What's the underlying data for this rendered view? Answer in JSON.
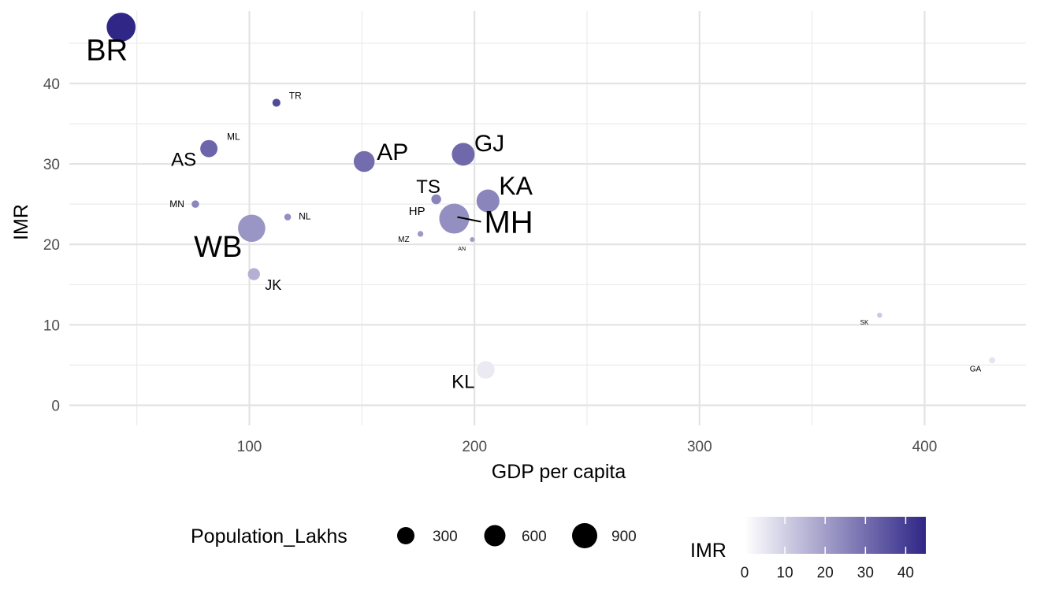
{
  "chart_data": {
    "type": "scatter",
    "title": "",
    "xlabel": "GDP per capita",
    "ylabel": "IMR",
    "xlim": [
      20,
      445
    ],
    "ylim": [
      -2.5,
      49
    ],
    "x_ticks": [
      100,
      200,
      300,
      400
    ],
    "y_ticks": [
      0,
      10,
      20,
      30,
      40
    ],
    "grid": true,
    "size_legend": {
      "title": "Population_Lakhs",
      "values": [
        300,
        600,
        900
      ],
      "labels": [
        "300",
        "600",
        "900"
      ]
    },
    "color_legend": {
      "title": "IMR",
      "range": [
        0,
        45
      ],
      "ticks": [
        0,
        10,
        20,
        30,
        40
      ],
      "labels": [
        "0",
        "10",
        "20",
        "30",
        "40"
      ],
      "low_color": "#ffffff",
      "high_color": "#2f2686"
    },
    "legend_position": "bottom",
    "points": [
      {
        "label": "BR",
        "x": 43,
        "y": 47,
        "population": 1040
      },
      {
        "label": "TR",
        "x": 112,
        "y": 37.6,
        "population": 37
      },
      {
        "label": "ML",
        "x": 83,
        "y": 32,
        "population": 30
      },
      {
        "label": "AS",
        "x": 82,
        "y": 31.9,
        "population": 312
      },
      {
        "label": "AP",
        "x": 151,
        "y": 30.3,
        "population": 495
      },
      {
        "label": "GJ",
        "x": 195,
        "y": 31.2,
        "population": 604
      },
      {
        "label": "TS",
        "x": 183,
        "y": 25.6,
        "population": 35
      },
      {
        "label": "KA",
        "x": 206,
        "y": 25.4,
        "population": 611
      },
      {
        "label": "HP",
        "x": 183,
        "y": 25.6,
        "population": 69
      },
      {
        "label": "MH",
        "x": 191,
        "y": 23.2,
        "population": 1124
      },
      {
        "label": "MN",
        "x": 76,
        "y": 25,
        "population": 29
      },
      {
        "label": "NL",
        "x": 117,
        "y": 23.4,
        "population": 20
      },
      {
        "label": "WB",
        "x": 101,
        "y": 22,
        "population": 913
      },
      {
        "label": "MZ",
        "x": 176,
        "y": 21.3,
        "population": 11
      },
      {
        "label": "AN",
        "x": 199,
        "y": 20.6,
        "population": 4
      },
      {
        "label": "JK",
        "x": 102,
        "y": 16.3,
        "population": 125
      },
      {
        "label": "SK",
        "x": 380,
        "y": 11.2,
        "population": 6
      },
      {
        "label": "KL",
        "x": 205,
        "y": 4.4,
        "population": 334
      },
      {
        "label": "GA",
        "x": 430,
        "y": 5.6,
        "population": 15
      }
    ]
  }
}
